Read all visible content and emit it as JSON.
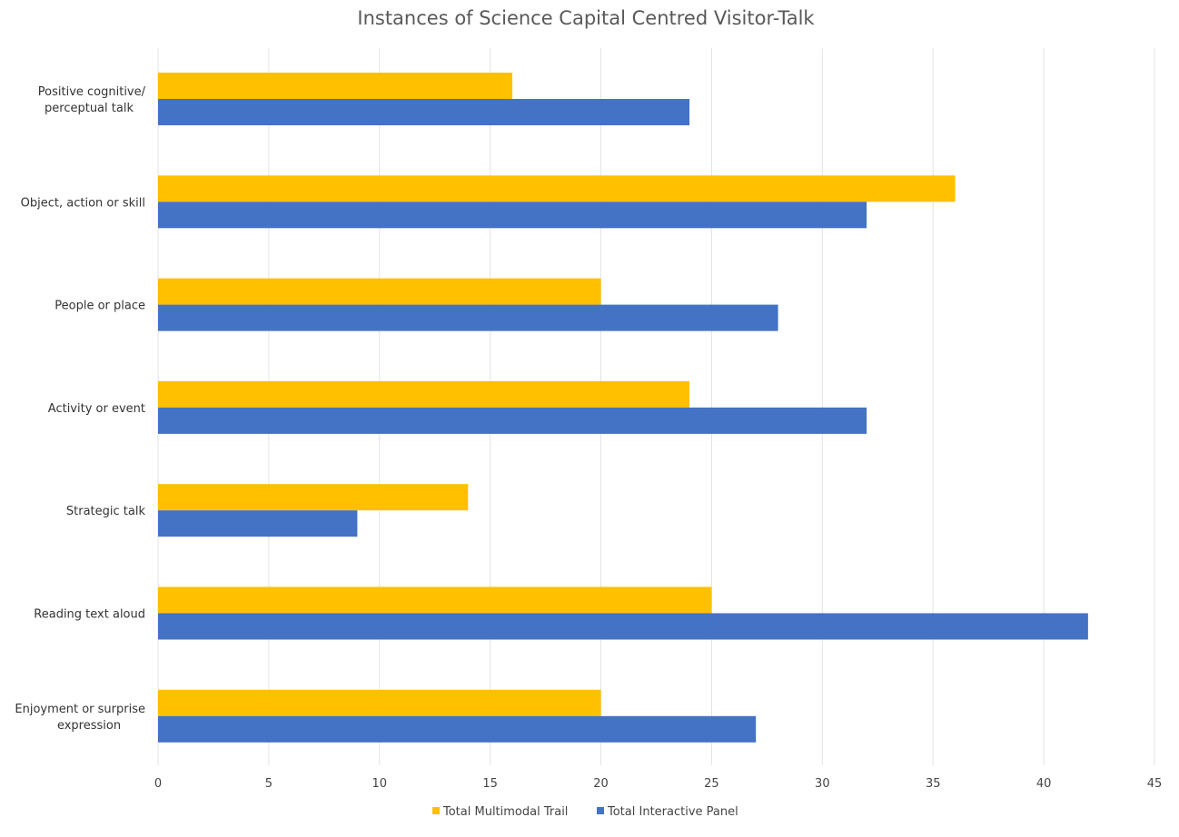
{
  "chart_data": {
    "type": "bar",
    "orientation": "horizontal",
    "title": "Instances of Science Capital Centred Visitor-Talk",
    "xlabel": "",
    "ylabel": "",
    "categories": [
      [
        "Positive cognitive/",
        "perceptual talk"
      ],
      [
        "Object, action or skill"
      ],
      [
        "People or place"
      ],
      [
        "Activity or event"
      ],
      [
        "Strategic talk"
      ],
      [
        "Reading text aloud"
      ],
      [
        "Enjoyment or surprise",
        "expression"
      ]
    ],
    "series": [
      {
        "name": "Total Multimodal Trail",
        "color": "#FFC000",
        "values": [
          16,
          36,
          20,
          24,
          14,
          25,
          20
        ]
      },
      {
        "name": "Total Interactive Panel",
        "color": "#4472C4",
        "values": [
          24,
          32,
          28,
          32,
          9,
          42,
          27
        ]
      }
    ],
    "xlim": [
      0,
      45
    ],
    "xticks": [
      0,
      5,
      10,
      15,
      20,
      25,
      30,
      35,
      40,
      45
    ],
    "grid": "vertical",
    "legend_position": "bottom-center"
  }
}
